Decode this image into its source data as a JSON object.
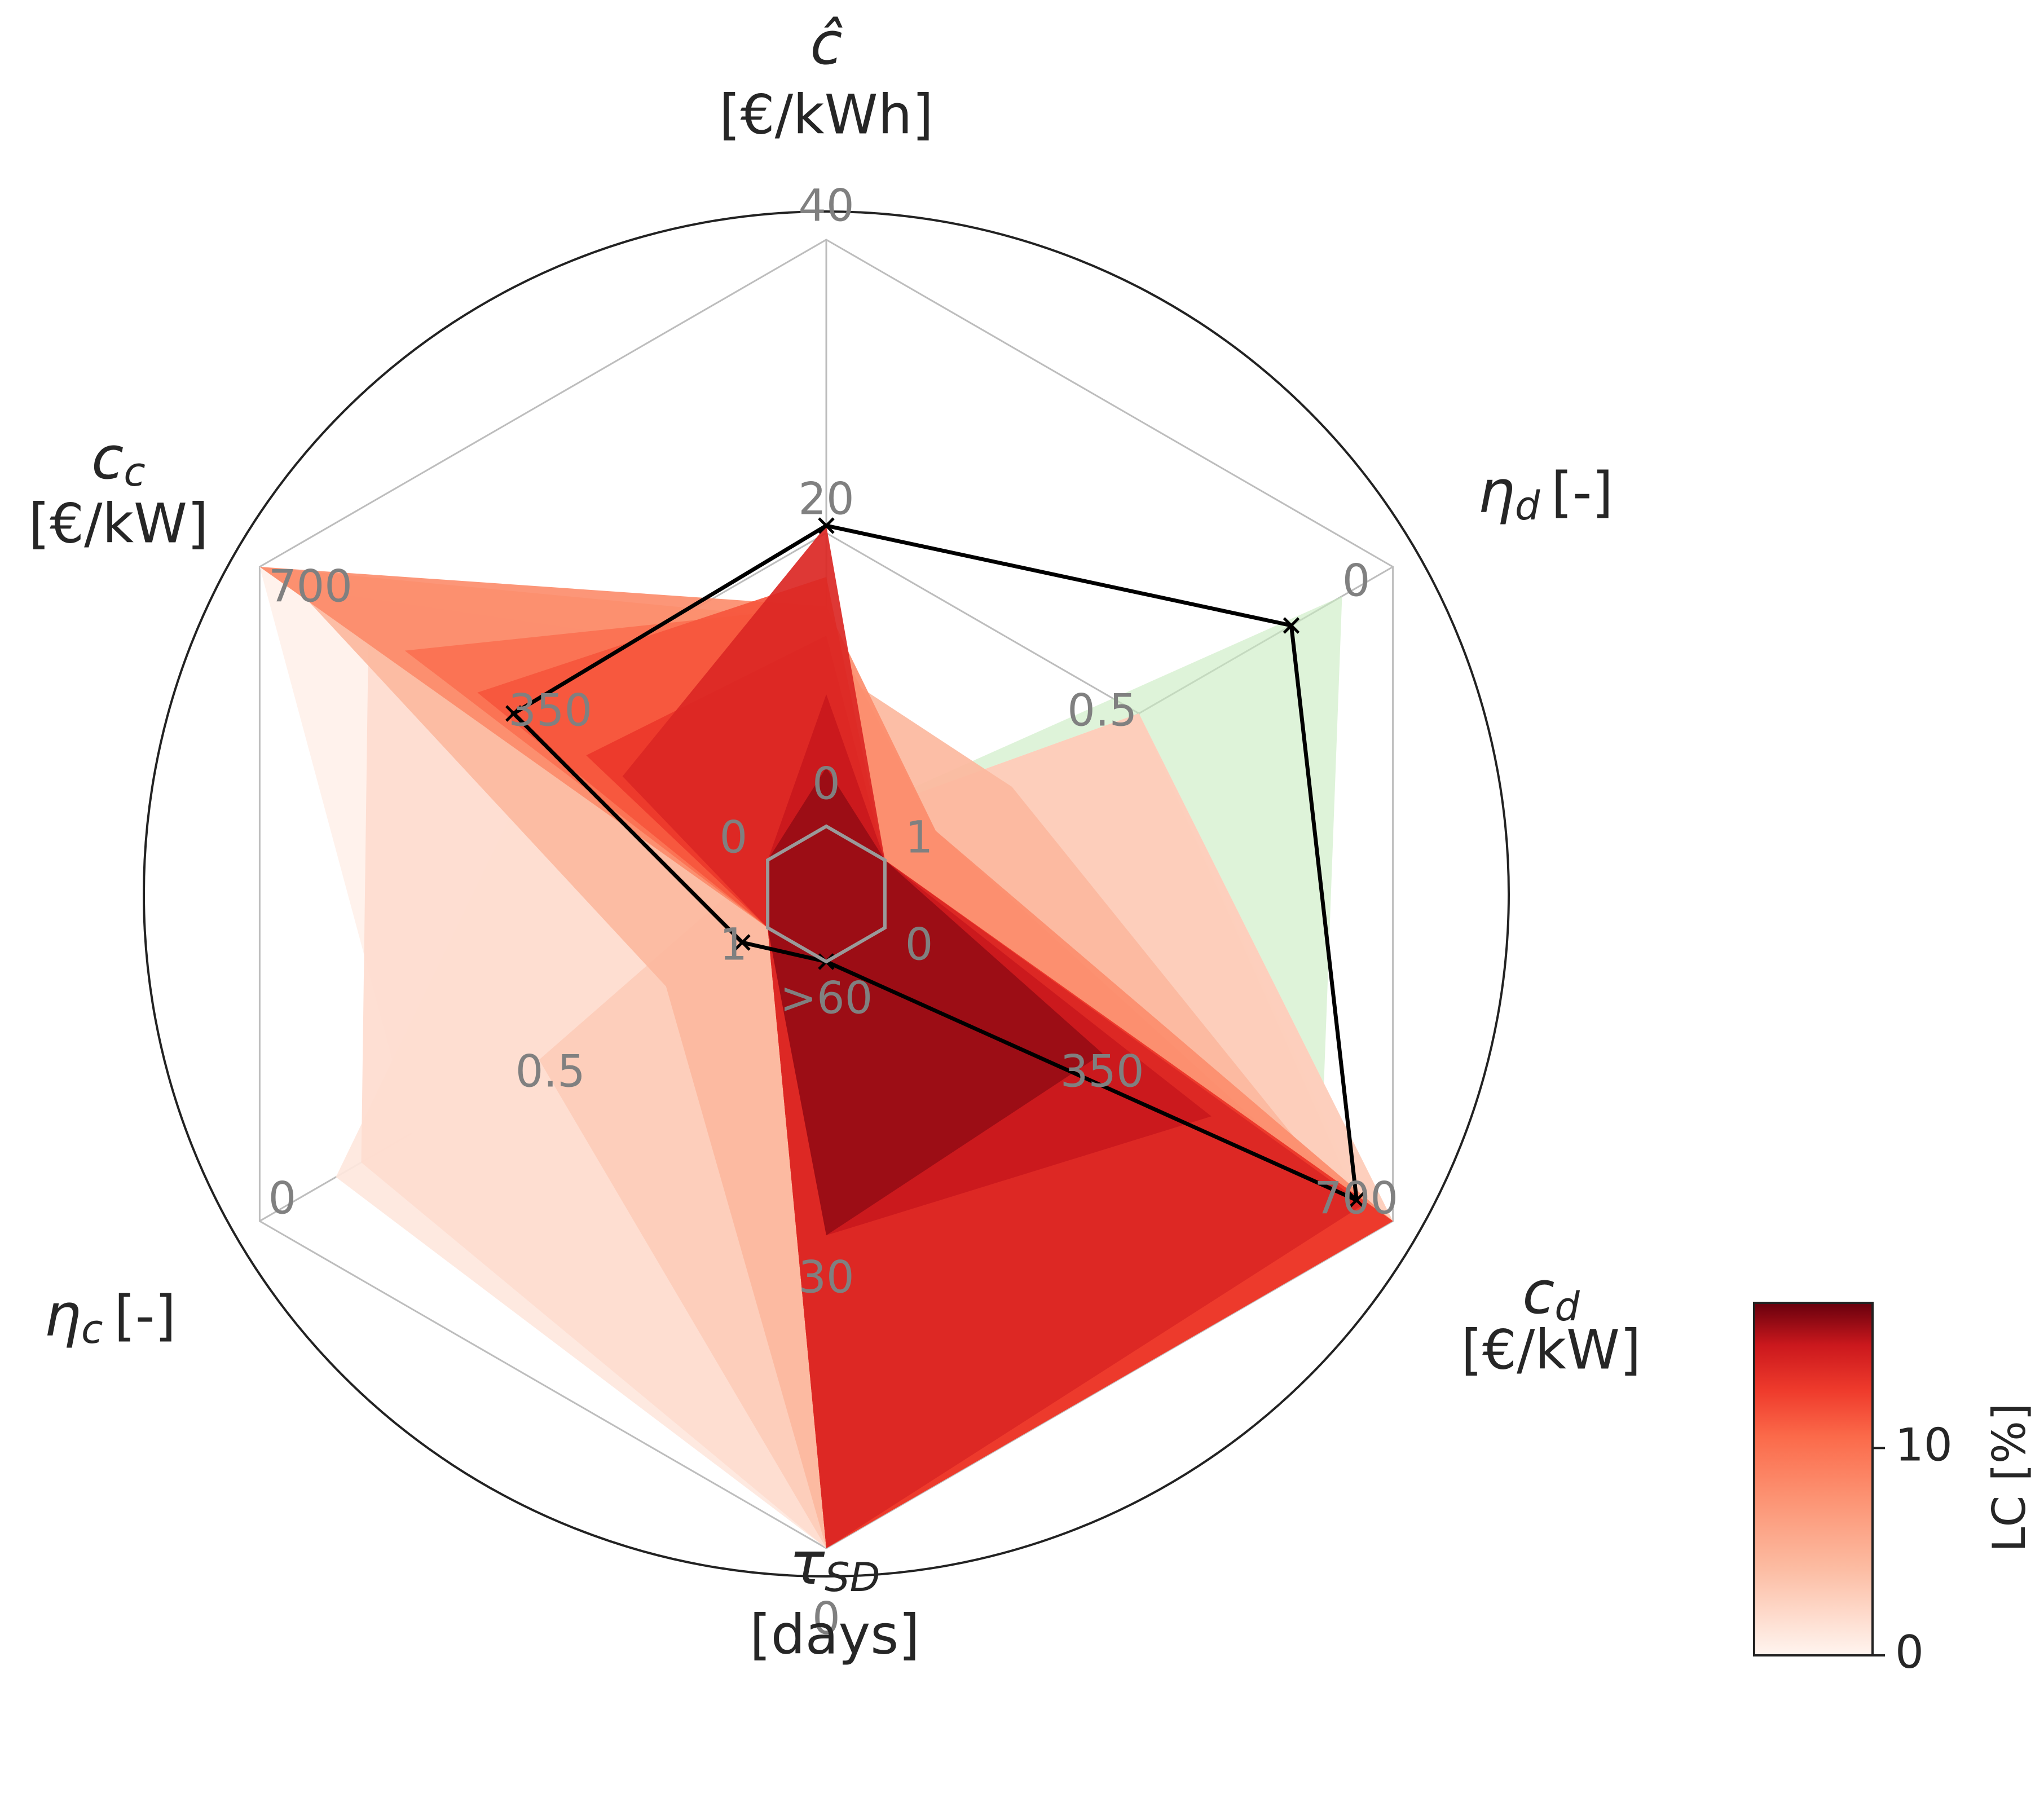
{
  "chart_data": {
    "type": "radar",
    "axes": [
      {
        "symbol": "ĉ",
        "unit": "[€/kWh]",
        "ticks": [
          "20",
          "40"
        ],
        "min_label": "0",
        "range": [
          0,
          40
        ]
      },
      {
        "symbol": "η",
        "sub": "d",
        "unit": "[-]",
        "ticks": [
          "0.5",
          "0"
        ],
        "min_label": "1",
        "range": [
          1,
          0
        ]
      },
      {
        "symbol": "c",
        "sub": "d",
        "unit": "[€/kW]",
        "ticks": [
          "350",
          "700"
        ],
        "min_label": "0",
        "range": [
          0,
          700
        ]
      },
      {
        "symbol": "τ",
        "sub": "SD",
        "unit": "[days]",
        "ticks": [
          "30",
          "0"
        ],
        "min_label": ">60",
        "range": [
          60,
          0
        ]
      },
      {
        "symbol": "η",
        "sub": "c",
        "unit": "[-]",
        "ticks": [
          "0.5",
          "0"
        ],
        "min_label": "1",
        "range": [
          1,
          0
        ]
      },
      {
        "symbol": "c",
        "sub": "c",
        "unit": "[€/kW]",
        "ticks": [
          "350",
          "700"
        ],
        "min_label": "0",
        "range": [
          0,
          700
        ]
      }
    ],
    "reference_polygon": {
      "color": "#000000",
      "values": [
        20.5,
        0.2,
        650,
        60,
        0.95,
        350
      ]
    },
    "feasible_region": {
      "color": "#c8ebc0",
      "values": [
        0,
        0.1,
        600,
        60,
        1,
        0
      ]
    },
    "polygons": [
      {
        "lc": 0.3,
        "values": [
          0,
          0.5,
          700,
          0,
          0.3,
          700
        ]
      },
      {
        "lc": 1.0,
        "values": [
          0,
          0.5,
          660,
          0,
          0.15,
          300
        ]
      },
      {
        "lc": 1.8,
        "values": [
          0,
          0.5,
          650,
          0,
          0.2,
          550
        ]
      },
      {
        "lc": 3.0,
        "values": [
          0,
          0.5,
          700,
          0,
          0.55,
          0
        ]
      },
      {
        "lc": 4.5,
        "values": [
          11,
          0.75,
          620,
          0,
          0.8,
          650
        ]
      },
      {
        "lc": 6.0,
        "values": [
          14,
          0.9,
          600,
          40,
          1,
          700
        ]
      },
      {
        "lc": 8.0,
        "values": [
          15,
          0.9,
          700,
          20,
          1,
          700
        ]
      },
      {
        "lc": 10.0,
        "values": [
          15,
          1,
          700,
          0,
          1,
          500
        ]
      },
      {
        "lc": 11.5,
        "values": [
          17,
          1,
          700,
          0,
          1,
          400
        ]
      },
      {
        "lc": 13.0,
        "values": [
          13,
          1,
          700,
          0,
          1,
          250
        ]
      },
      {
        "lc": 14.0,
        "values": [
          20.5,
          1,
          660,
          0,
          1,
          200
        ]
      },
      {
        "lc": 15.0,
        "values": [
          9,
          1,
          450,
          32,
          1,
          0
        ]
      },
      {
        "lc": 16.0,
        "values": [
          4,
          1,
          300,
          32,
          1,
          0
        ]
      }
    ],
    "colorbar": {
      "label": "LC [%]",
      "ticks": [
        {
          "value": 0,
          "label": "0"
        },
        {
          "value": 10,
          "label": "10"
        }
      ],
      "range": [
        0,
        17
      ]
    }
  }
}
